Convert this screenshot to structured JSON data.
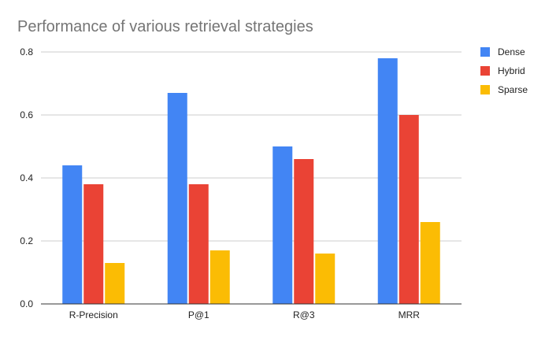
{
  "chart_data": {
    "type": "bar",
    "title": "Performance of various retrieval strategies",
    "xlabel": "",
    "ylabel": "",
    "categories": [
      "R-Precision",
      "P@1",
      "R@3",
      "MRR"
    ],
    "series": [
      {
        "name": "Dense",
        "color": "#4285f4",
        "values": [
          0.44,
          0.67,
          0.5,
          0.78
        ]
      },
      {
        "name": "Hybrid",
        "color": "#ea4335",
        "values": [
          0.38,
          0.38,
          0.46,
          0.6
        ]
      },
      {
        "name": "Sparse",
        "color": "#fbbc04",
        "values": [
          0.13,
          0.17,
          0.16,
          0.26
        ]
      }
    ],
    "ylim": [
      0,
      0.8
    ],
    "yticks": [
      "0.0",
      "0.2",
      "0.4",
      "0.6",
      "0.8"
    ],
    "grid": true,
    "legend_position": "right"
  }
}
